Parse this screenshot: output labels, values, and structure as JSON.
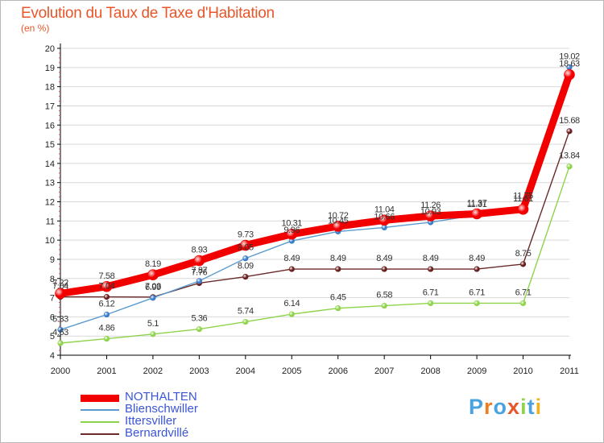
{
  "title": "Evolution du Taux de Taxe d'Habitation",
  "unit_label": "(en %)",
  "colors": {
    "title": "#e8562a",
    "axis": "#000000",
    "grid": "#d9d9d9",
    "legend_text": "#3b55d8"
  },
  "chart_data": {
    "type": "line",
    "title": "Evolution du Taux de Taxe d'Habitation",
    "ylabel": "(en %)",
    "xlabel": "",
    "categories": [
      "2000",
      "2001",
      "2002",
      "2003",
      "2004",
      "2005",
      "2006",
      "2007",
      "2008",
      "2009",
      "2010",
      "2011"
    ],
    "ylim": [
      4,
      20
    ],
    "yticks": [
      4,
      5,
      6,
      7,
      8,
      9,
      10,
      11,
      12,
      13,
      14,
      15,
      16,
      17,
      18,
      19,
      20
    ],
    "grid": true,
    "legend_position": "bottom-left",
    "series": [
      {
        "name": "Ittersviller",
        "color": "#8ed44a",
        "marker": "#8ed44a",
        "values": [
          4.63,
          4.86,
          5.1,
          5.36,
          5.74,
          6.14,
          6.45,
          6.58,
          6.71,
          6.71,
          6.71,
          13.84
        ],
        "labels": [
          "4.63",
          "4.86",
          "5.1",
          "5.36",
          "5.74",
          "6.14",
          "6.45",
          "6.58",
          "6.71",
          "6.71",
          "6.71",
          "13.84"
        ]
      },
      {
        "name": "Bernardvillé",
        "color": "#6a2a2a",
        "marker": "#6a1f1f",
        "values": [
          7.04,
          7.04,
          7.03,
          7.76,
          8.09,
          8.49,
          8.49,
          8.49,
          8.49,
          8.49,
          8.75,
          15.68
        ],
        "labels": [
          "7.04",
          "7.04",
          "7.03",
          "7.76",
          "8.09",
          "8.49",
          "8.49",
          "8.49",
          "8.49",
          "8.49",
          "8.75",
          "15.68"
        ]
      },
      {
        "name": "Blienschwiller",
        "color": "#5a9bd0",
        "marker": "#3a7cc8",
        "values": [
          5.33,
          6.12,
          6.99,
          7.87,
          9.05,
          9.96,
          10.45,
          10.66,
          10.93,
          11.31,
          11.75,
          19.02
        ],
        "labels": [
          "5.33",
          "6.12",
          "6.99",
          "7.87",
          "9.05",
          "9.96",
          "10.45",
          "10.66",
          "10.93",
          "11.31",
          "11.75",
          "19.02"
        ]
      },
      {
        "name": "NOTHALTEN",
        "color": "#f20000",
        "marker": "#f20000",
        "values": [
          7.22,
          7.58,
          8.19,
          8.93,
          9.73,
          10.31,
          10.72,
          11.04,
          11.26,
          11.37,
          11.61,
          18.63
        ],
        "labels": [
          "7.22",
          "7.58",
          "8.19",
          "8.93",
          "9.73",
          "10.31",
          "10.72",
          "11.04",
          "11.26",
          "11.37",
          "11.61",
          "18.63"
        ]
      }
    ],
    "legend_order": [
      "NOTHALTEN",
      "Blienschwiller",
      "Ittersviller",
      "Bernardvillé"
    ]
  },
  "legend": [
    {
      "label": "NOTHALTEN",
      "color": "#f20000"
    },
    {
      "label": "Blienschwiller",
      "color": "#5a9bd0"
    },
    {
      "label": "Ittersviller",
      "color": "#8ed44a"
    },
    {
      "label": "Bernardvillé",
      "color": "#6a2a2a"
    }
  ],
  "logo": {
    "text": "Proxiti",
    "letters": [
      "P",
      "r",
      "o",
      "x",
      "i",
      "t",
      "i"
    ],
    "letter_colors": [
      "#4aa3df",
      "#f07c1e",
      "#4aa3df",
      "#e8562a",
      "#8ed44a",
      "#4aa3df",
      "#f0b21e"
    ]
  }
}
